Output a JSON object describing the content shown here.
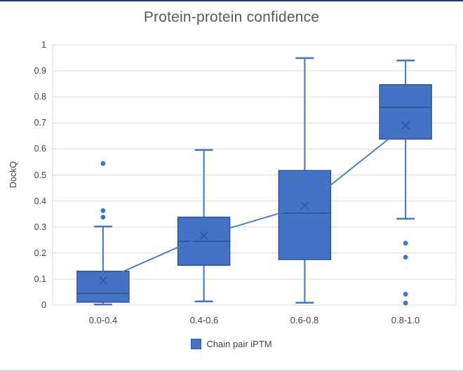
{
  "colors": {
    "box_fill": "#4472C4",
    "box_border": "#2F5597",
    "median": "#2F5597",
    "whisker": "#4472C4",
    "mean_marker": "#2F5597",
    "mean_line": "#4472C4",
    "outlier": "#4472C4",
    "gridline": "#D9D9D9",
    "title_text": "#595959",
    "axis_text": "#404040",
    "frame_top": "#1F3864",
    "frame_bottom": "#BFBFBF"
  },
  "chart": {
    "title": "Protein-protein confidence",
    "y_axis": {
      "label": "DockQ",
      "ticks": [
        "1",
        "0.9",
        "0.8",
        "0.7",
        "0.6",
        "0.5",
        "0.4",
        "0.3",
        "0.2",
        "0.1",
        "0"
      ]
    },
    "x_axis": {
      "categories": [
        "0.0-0.4",
        "0.4-0.6",
        "0.6-0.8",
        "0.8-1.0"
      ]
    },
    "legend": {
      "label": "Chain pair iPTM",
      "color": "#4472C4"
    }
  },
  "chart_data": {
    "type": "boxplot",
    "title": "Protein-protein confidence",
    "xlabel": "",
    "ylabel": "DockQ",
    "ylim": [
      0,
      1
    ],
    "ytick_step": 0.1,
    "grid": "horizontal",
    "legend_position": "bottom",
    "categories": [
      "0.0-0.4",
      "0.4-0.6",
      "0.6-0.8",
      "0.8-1.0"
    ],
    "series": [
      {
        "name": "Chain pair iPTM",
        "boxes": [
          {
            "category": "0.0-0.4",
            "whisker_low": 0.002,
            "q1": 0.011,
            "median": 0.045,
            "mean": 0.095,
            "q3": 0.13,
            "whisker_high": 0.302,
            "outliers": [
              0.338,
              0.363,
              0.544
            ]
          },
          {
            "category": "0.4-0.6",
            "whisker_low": 0.014,
            "q1": 0.153,
            "median": 0.245,
            "mean": 0.266,
            "q3": 0.338,
            "whisker_high": 0.596,
            "outliers": []
          },
          {
            "category": "0.6-0.8",
            "whisker_low": 0.009,
            "q1": 0.175,
            "median": 0.353,
            "mean": 0.382,
            "q3": 0.517,
            "whisker_high": 0.949,
            "outliers": []
          },
          {
            "category": "0.8-1.0",
            "whisker_low": 0.332,
            "q1": 0.638,
            "median": 0.76,
            "mean": 0.69,
            "q3": 0.847,
            "whisker_high": 0.94,
            "outliers": [
              0.238,
              0.184,
              0.042,
              0.008
            ]
          }
        ]
      }
    ],
    "mean_line_connects_means": true
  }
}
